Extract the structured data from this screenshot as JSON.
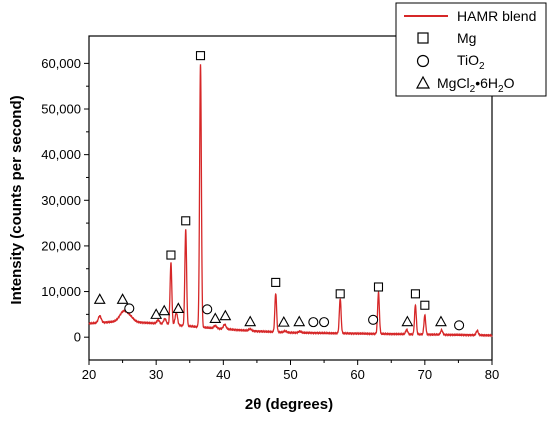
{
  "chart_data": {
    "type": "line",
    "xlabel": "2θ (degrees)",
    "ylabel": "Intensity (counts per second)",
    "xlim": [
      20,
      80
    ],
    "ylim": [
      -5000,
      66000
    ],
    "x_ticks": [
      20,
      30,
      40,
      50,
      60,
      70,
      80
    ],
    "y_ticks": [
      0,
      10000,
      20000,
      30000,
      40000,
      50000,
      60000
    ],
    "y_tick_labels": [
      "0",
      "10,000",
      "20,000",
      "30,000",
      "40,000",
      "50,000",
      "60,000"
    ],
    "grid": false,
    "legend_position": "top-right",
    "series": [
      {
        "name": "HAMR blend",
        "color": "#d62728",
        "baseline": [
          [
            20,
            3000
          ],
          [
            25,
            3500
          ],
          [
            30,
            3000
          ],
          [
            35,
            2400
          ],
          [
            40,
            1800
          ],
          [
            45,
            1300
          ],
          [
            50,
            1000
          ],
          [
            55,
            900
          ],
          [
            60,
            800
          ],
          [
            65,
            700
          ],
          [
            70,
            600
          ],
          [
            75,
            500
          ],
          [
            80,
            400
          ]
        ],
        "peaks": [
          {
            "x": 21.6,
            "h": 1500,
            "w": 0.22
          },
          {
            "x": 25.2,
            "h": 2200,
            "w": 0.6
          },
          {
            "x": 26.2,
            "h": 800,
            "w": 0.5
          },
          {
            "x": 30.3,
            "h": 800,
            "w": 0.2
          },
          {
            "x": 31.3,
            "h": 1200,
            "w": 0.2
          },
          {
            "x": 32.2,
            "h": 13500,
            "w": 0.13
          },
          {
            "x": 33.0,
            "h": 2800,
            "w": 0.18
          },
          {
            "x": 34.4,
            "h": 21000,
            "w": 0.13
          },
          {
            "x": 36.6,
            "h": 57500,
            "w": 0.13
          },
          {
            "x": 38.8,
            "h": 600,
            "w": 0.2
          },
          {
            "x": 40.2,
            "h": 1000,
            "w": 0.2
          },
          {
            "x": 44.0,
            "h": 400,
            "w": 0.2
          },
          {
            "x": 47.8,
            "h": 8500,
            "w": 0.13
          },
          {
            "x": 49.2,
            "h": 300,
            "w": 0.2
          },
          {
            "x": 51.4,
            "h": 300,
            "w": 0.2
          },
          {
            "x": 57.4,
            "h": 7600,
            "w": 0.13
          },
          {
            "x": 63.1,
            "h": 9000,
            "w": 0.13
          },
          {
            "x": 67.3,
            "h": 1000,
            "w": 0.15
          },
          {
            "x": 68.6,
            "h": 6400,
            "w": 0.13
          },
          {
            "x": 70.0,
            "h": 4200,
            "w": 0.13
          },
          {
            "x": 72.5,
            "h": 1000,
            "w": 0.15
          },
          {
            "x": 77.8,
            "h": 1000,
            "w": 0.15
          }
        ]
      }
    ],
    "markers": [
      {
        "label": "Mg",
        "symbol": "square",
        "points": [
          [
            32.2,
            18000
          ],
          [
            34.4,
            25500
          ],
          [
            36.6,
            61700
          ],
          [
            47.8,
            12000
          ],
          [
            57.4,
            9500
          ],
          [
            63.1,
            11000
          ],
          [
            68.6,
            9500
          ],
          [
            70.0,
            7000
          ]
        ]
      },
      {
        "label": "TiO2",
        "symbol": "circle",
        "points": [
          [
            26.0,
            6300
          ],
          [
            37.6,
            6100
          ],
          [
            53.4,
            3300
          ],
          [
            55.0,
            3300
          ],
          [
            62.3,
            3800
          ],
          [
            75.1,
            2600
          ]
        ]
      },
      {
        "label": "MgCl2•6H2O",
        "symbol": "triangle",
        "points": [
          [
            21.6,
            8300
          ],
          [
            25.0,
            8300
          ],
          [
            30.0,
            5000
          ],
          [
            31.2,
            5800
          ],
          [
            33.3,
            6300
          ],
          [
            38.8,
            4100
          ],
          [
            40.3,
            4700
          ],
          [
            44.0,
            3400
          ],
          [
            49.0,
            3300
          ],
          [
            51.3,
            3400
          ],
          [
            67.4,
            3400
          ],
          [
            72.4,
            3400
          ]
        ]
      }
    ],
    "legend": [
      {
        "type": "line",
        "label": "HAMR blend"
      },
      {
        "type": "square",
        "label": "Mg"
      },
      {
        "type": "circle",
        "label_main": "TiO",
        "label_sub": "2",
        "label_rest": ""
      },
      {
        "type": "triangle",
        "label_parts": [
          "MgCl",
          "2",
          "•6H",
          "2",
          "O"
        ]
      }
    ]
  }
}
